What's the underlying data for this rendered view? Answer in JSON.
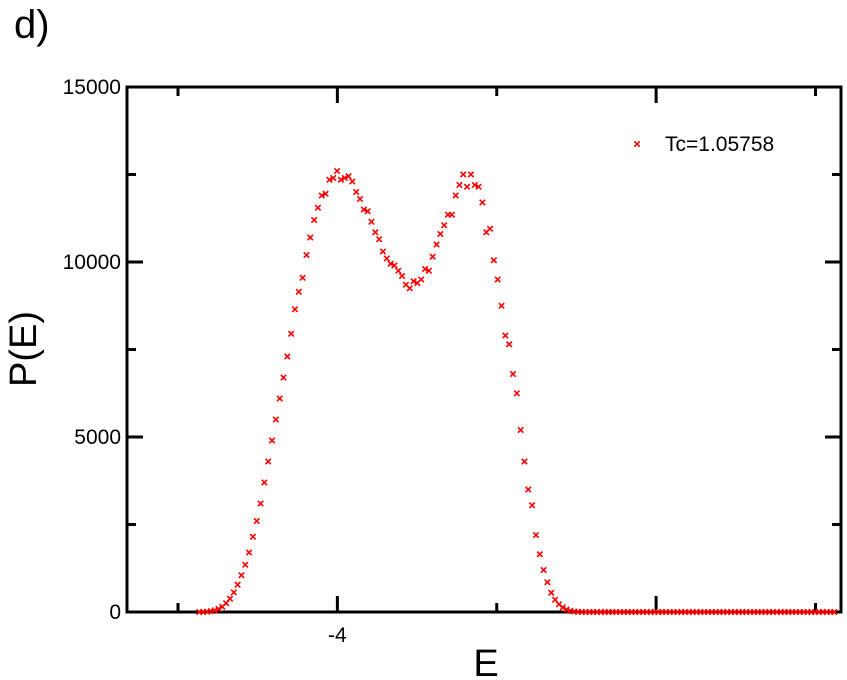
{
  "panel_label": "d)",
  "chart_data": {
    "type": "scatter",
    "title": "",
    "xlabel": "E",
    "ylabel": "P(E)",
    "xlim": [
      -4.66,
      -2.42
    ],
    "ylim": [
      0,
      15000
    ],
    "x_tick_labels": [
      {
        "value": -4,
        "label": "-4"
      }
    ],
    "y_tick_labels": [
      {
        "value": 0,
        "label": "0"
      },
      {
        "value": 5000,
        "label": "5000"
      },
      {
        "value": 10000,
        "label": "10000"
      },
      {
        "value": 15000,
        "label": "15000"
      }
    ],
    "grid": false,
    "legend_position": "top-right",
    "marker": "x",
    "color": "#ff0000",
    "series": [
      {
        "name": "Tc=1.05758",
        "points": [
          [
            -4.433,
            0
          ],
          [
            -4.421,
            0
          ],
          [
            -4.409,
            10
          ],
          [
            -4.397,
            25
          ],
          [
            -4.385,
            45
          ],
          [
            -4.373,
            85
          ],
          [
            -4.361,
            150
          ],
          [
            -4.349,
            250
          ],
          [
            -4.337,
            380
          ],
          [
            -4.325,
            560
          ],
          [
            -4.313,
            780
          ],
          [
            -4.301,
            1050
          ],
          [
            -4.289,
            1350
          ],
          [
            -4.277,
            1700
          ],
          [
            -4.265,
            2150
          ],
          [
            -4.253,
            2600
          ],
          [
            -4.241,
            3100
          ],
          [
            -4.229,
            3700
          ],
          [
            -4.217,
            4300
          ],
          [
            -4.205,
            4900
          ],
          [
            -4.193,
            5500
          ],
          [
            -4.181,
            6100
          ],
          [
            -4.169,
            6700
          ],
          [
            -4.157,
            7300
          ],
          [
            -4.145,
            7950
          ],
          [
            -4.133,
            8650
          ],
          [
            -4.121,
            9150
          ],
          [
            -4.109,
            9550
          ],
          [
            -4.097,
            10200
          ],
          [
            -4.085,
            10700
          ],
          [
            -4.073,
            11200
          ],
          [
            -4.061,
            11550
          ],
          [
            -4.049,
            11900
          ],
          [
            -4.037,
            11950
          ],
          [
            -4.025,
            12350
          ],
          [
            -4.013,
            12400
          ],
          [
            -4.001,
            12600
          ],
          [
            -3.989,
            12350
          ],
          [
            -3.977,
            12400
          ],
          [
            -3.965,
            12450
          ],
          [
            -3.953,
            12300
          ],
          [
            -3.941,
            12000
          ],
          [
            -3.929,
            11800
          ],
          [
            -3.917,
            11500
          ],
          [
            -3.905,
            11450
          ],
          [
            -3.893,
            11150
          ],
          [
            -3.881,
            10850
          ],
          [
            -3.869,
            10650
          ],
          [
            -3.857,
            10300
          ],
          [
            -3.845,
            10100
          ],
          [
            -3.833,
            9950
          ],
          [
            -3.821,
            9900
          ],
          [
            -3.809,
            9750
          ],
          [
            -3.797,
            9600
          ],
          [
            -3.785,
            9350
          ],
          [
            -3.773,
            9250
          ],
          [
            -3.761,
            9450
          ],
          [
            -3.749,
            9400
          ],
          [
            -3.737,
            9500
          ],
          [
            -3.725,
            9800
          ],
          [
            -3.713,
            9750
          ],
          [
            -3.701,
            10150
          ],
          [
            -3.689,
            10500
          ],
          [
            -3.677,
            10800
          ],
          [
            -3.665,
            11050
          ],
          [
            -3.653,
            11350
          ],
          [
            -3.641,
            11350
          ],
          [
            -3.629,
            11900
          ],
          [
            -3.617,
            12200
          ],
          [
            -3.605,
            12500
          ],
          [
            -3.593,
            12150
          ],
          [
            -3.581,
            12500
          ],
          [
            -3.569,
            12200
          ],
          [
            -3.557,
            12150
          ],
          [
            -3.545,
            11700
          ],
          [
            -3.533,
            10850
          ],
          [
            -3.521,
            10950
          ],
          [
            -3.509,
            10050
          ],
          [
            -3.497,
            9500
          ],
          [
            -3.485,
            8750
          ],
          [
            -3.473,
            7900
          ],
          [
            -3.461,
            7650
          ],
          [
            -3.449,
            6800
          ],
          [
            -3.437,
            6250
          ],
          [
            -3.425,
            5200
          ],
          [
            -3.413,
            4300
          ],
          [
            -3.401,
            3500
          ],
          [
            -3.389,
            3050
          ],
          [
            -3.377,
            2200
          ],
          [
            -3.365,
            1650
          ],
          [
            -3.353,
            1200
          ],
          [
            -3.341,
            850
          ],
          [
            -3.329,
            550
          ],
          [
            -3.317,
            350
          ],
          [
            -3.305,
            220
          ],
          [
            -3.293,
            130
          ],
          [
            -3.281,
            70
          ],
          [
            -3.269,
            35
          ],
          [
            -3.257,
            15
          ],
          [
            -3.245,
            5
          ],
          [
            -3.233,
            0
          ],
          [
            -3.221,
            0
          ],
          [
            -3.209,
            0
          ],
          [
            -3.197,
            0
          ],
          [
            -3.185,
            0
          ],
          [
            -3.173,
            0
          ],
          [
            -3.161,
            0
          ],
          [
            -3.149,
            0
          ],
          [
            -3.137,
            0
          ],
          [
            -3.125,
            0
          ],
          [
            -3.113,
            0
          ],
          [
            -3.101,
            0
          ],
          [
            -3.089,
            0
          ],
          [
            -3.077,
            0
          ],
          [
            -3.065,
            0
          ],
          [
            -3.053,
            0
          ],
          [
            -3.041,
            0
          ],
          [
            -3.029,
            0
          ],
          [
            -3.017,
            0
          ],
          [
            -3.005,
            0
          ],
          [
            -2.993,
            0
          ],
          [
            -2.981,
            0
          ],
          [
            -2.969,
            0
          ],
          [
            -2.957,
            0
          ],
          [
            -2.945,
            0
          ],
          [
            -2.933,
            0
          ],
          [
            -2.921,
            0
          ],
          [
            -2.909,
            0
          ],
          [
            -2.897,
            0
          ],
          [
            -2.885,
            0
          ],
          [
            -2.873,
            0
          ],
          [
            -2.861,
            0
          ],
          [
            -2.849,
            0
          ],
          [
            -2.837,
            0
          ],
          [
            -2.825,
            0
          ],
          [
            -2.813,
            0
          ],
          [
            -2.801,
            0
          ],
          [
            -2.789,
            0
          ],
          [
            -2.777,
            0
          ],
          [
            -2.765,
            0
          ],
          [
            -2.753,
            0
          ],
          [
            -2.741,
            0
          ],
          [
            -2.729,
            0
          ],
          [
            -2.717,
            0
          ],
          [
            -2.705,
            0
          ],
          [
            -2.693,
            0
          ],
          [
            -2.681,
            0
          ],
          [
            -2.669,
            0
          ],
          [
            -2.657,
            0
          ],
          [
            -2.645,
            0
          ],
          [
            -2.633,
            0
          ],
          [
            -2.621,
            0
          ],
          [
            -2.609,
            0
          ],
          [
            -2.597,
            0
          ],
          [
            -2.585,
            0
          ],
          [
            -2.573,
            0
          ],
          [
            -2.561,
            0
          ],
          [
            -2.549,
            0
          ],
          [
            -2.537,
            0
          ],
          [
            -2.525,
            0
          ],
          [
            -2.513,
            0
          ],
          [
            -2.501,
            0
          ],
          [
            -2.489,
            0
          ],
          [
            -2.477,
            0
          ],
          [
            -2.465,
            0
          ],
          [
            -2.453,
            0
          ],
          [
            -2.441,
            0
          ]
        ]
      }
    ]
  }
}
